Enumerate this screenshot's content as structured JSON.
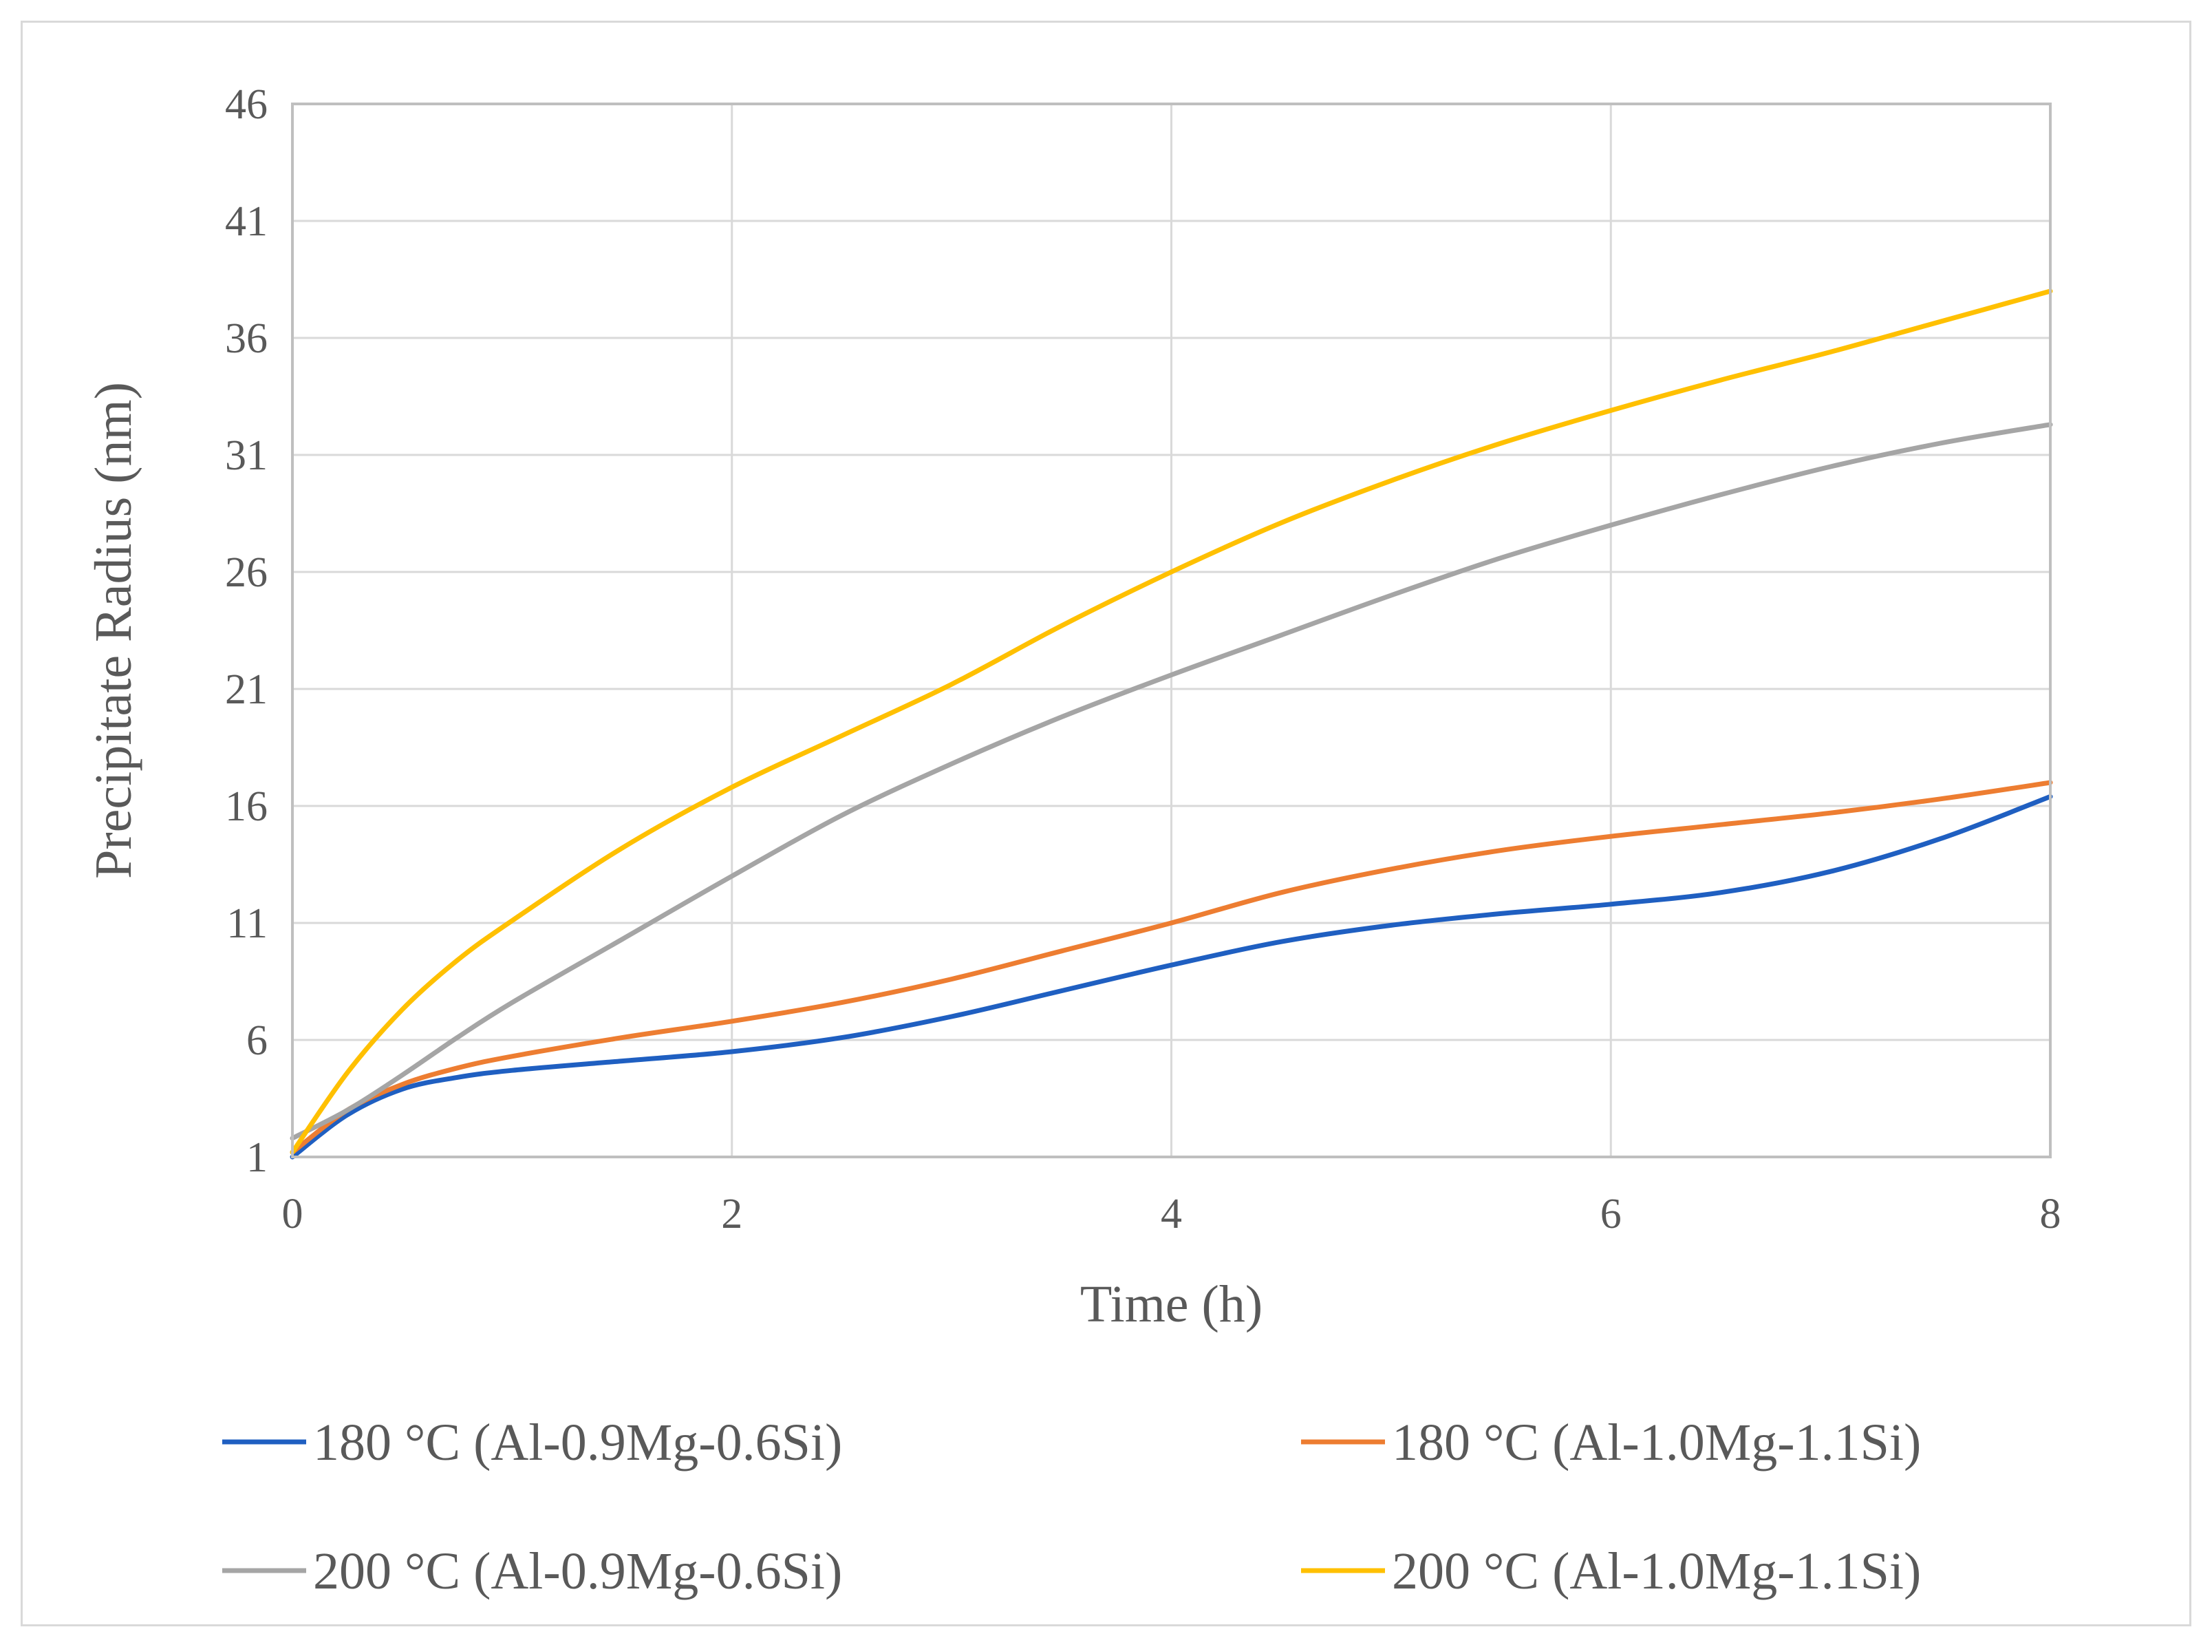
{
  "chart_data": {
    "type": "line",
    "title": "",
    "xlabel": "Time (h)",
    "ylabel": "Precipitate Radius (nm)",
    "xlim": [
      0,
      8
    ],
    "ylim": [
      1,
      46
    ],
    "xticks": [
      0,
      2,
      4,
      6,
      8
    ],
    "yticks": [
      1,
      6,
      11,
      16,
      21,
      26,
      31,
      36,
      41,
      46
    ],
    "grid": true,
    "legend_position": "bottom",
    "series": [
      {
        "name": "180 °C (Al-0.9Mg-0.6Si)",
        "color": "#1f5fc1",
        "x": [
          0,
          0.25,
          0.5,
          0.75,
          1,
          1.5,
          2,
          2.5,
          3,
          3.5,
          4,
          4.5,
          5,
          5.5,
          6,
          6.5,
          7,
          7.5,
          8
        ],
        "y": [
          1,
          2.8,
          3.9,
          4.4,
          4.7,
          5.1,
          5.5,
          6.1,
          7.0,
          8.1,
          9.2,
          10.2,
          10.9,
          11.4,
          11.8,
          12.3,
          13.2,
          14.6,
          16.4
        ]
      },
      {
        "name": "180 °C (Al-1.0Mg-1.1Si)",
        "color": "#ed7d31",
        "x": [
          0,
          0.25,
          0.5,
          0.75,
          1,
          1.5,
          2,
          2.5,
          3,
          3.5,
          4,
          4.5,
          5,
          5.5,
          6,
          6.5,
          7,
          7.5,
          8
        ],
        "y": [
          1.2,
          3.0,
          4.1,
          4.8,
          5.3,
          6.1,
          6.8,
          7.6,
          8.6,
          9.8,
          11.0,
          12.3,
          13.3,
          14.1,
          14.7,
          15.2,
          15.7,
          16.3,
          17.0
        ]
      },
      {
        "name": "200 °C (Al-0.9Mg-0.6Si)",
        "color": "#a5a5a5",
        "x": [
          0,
          0.25,
          0.5,
          0.75,
          1,
          1.5,
          2,
          2.5,
          3,
          3.5,
          4,
          4.5,
          5,
          5.5,
          6,
          6.5,
          7,
          7.5,
          8
        ],
        "y": [
          1.8,
          3.0,
          4.5,
          6.1,
          7.6,
          10.3,
          13.0,
          15.6,
          17.8,
          19.8,
          21.6,
          23.3,
          25.0,
          26.6,
          28.0,
          29.3,
          30.5,
          31.5,
          32.3
        ]
      },
      {
        "name": "200 °C (Al-1.0Mg-1.1Si)",
        "color": "#ffc000",
        "x": [
          0,
          0.25,
          0.5,
          0.75,
          1,
          1.5,
          2,
          2.5,
          3,
          3.5,
          4,
          4.5,
          5,
          5.5,
          6,
          6.5,
          7,
          7.5,
          8
        ],
        "y": [
          1.2,
          4.6,
          7.3,
          9.4,
          11.1,
          14.2,
          16.8,
          19.0,
          21.2,
          23.7,
          26.0,
          28.1,
          29.9,
          31.5,
          32.9,
          34.2,
          35.4,
          36.7,
          38.0
        ]
      }
    ]
  }
}
